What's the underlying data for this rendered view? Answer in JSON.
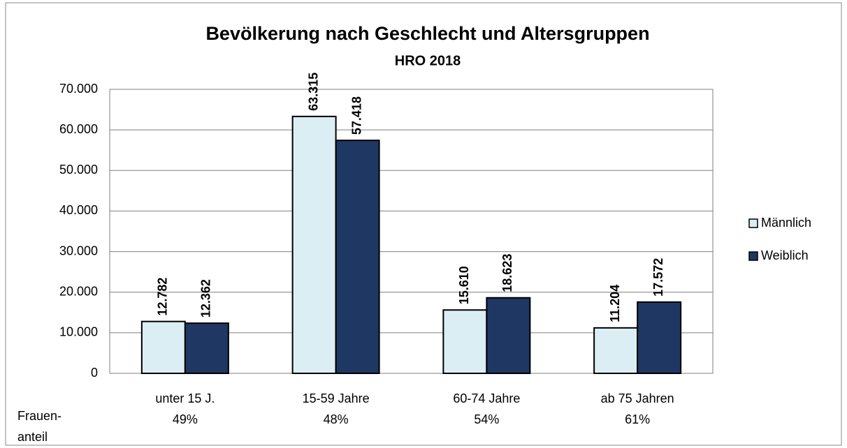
{
  "chart_data": {
    "type": "bar",
    "title": "Bevölkerung nach Geschlecht und Altersgruppen",
    "subtitle": "HRO 2018",
    "categories": [
      "unter 15 J.",
      "15-59 Jahre",
      "60-74 Jahre",
      "ab 75 Jahren"
    ],
    "series": [
      {
        "name": "Männlich",
        "color": "#dbeef3",
        "values": [
          12782,
          63315,
          15610,
          11204
        ],
        "value_labels": [
          "12.782",
          "63.315",
          "15.610",
          "11.204"
        ]
      },
      {
        "name": "Weiblich",
        "color": "#1f3763",
        "values": [
          12362,
          57418,
          18623,
          17572
        ],
        "value_labels": [
          "12.362",
          "57.418",
          "18.623",
          "17.572"
        ]
      }
    ],
    "ylim": [
      0,
      70000
    ],
    "yticks": [
      0,
      {
        "value": 10000,
        "label": "10.000"
      },
      {
        "value": 20000,
        "label": "20.000"
      },
      {
        "value": 30000,
        "label": "30.000"
      },
      {
        "value": 40000,
        "label": "40.000"
      },
      {
        "value": 50000,
        "label": "50.000"
      },
      {
        "value": 60000,
        "label": "60.000"
      },
      {
        "value": 70000,
        "label": "70.000"
      }
    ],
    "grid": true,
    "legend": "right",
    "share_label": [
      "Frauen-",
      "anteil"
    ],
    "share_values": [
      49,
      48,
      54,
      61
    ],
    "share_value_labels": [
      "49%",
      "48%",
      "54%",
      "61%"
    ]
  }
}
